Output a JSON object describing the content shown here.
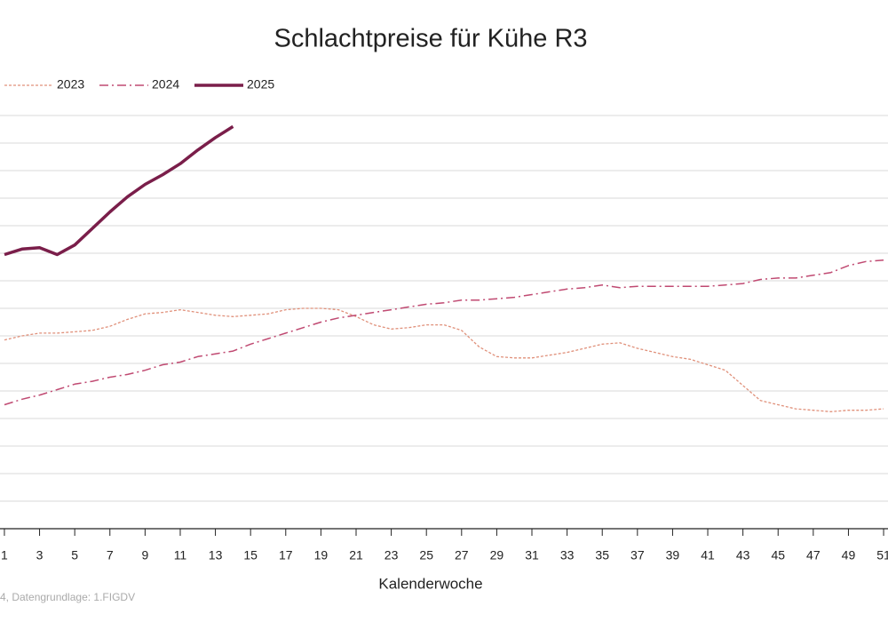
{
  "chart_data": {
    "type": "line",
    "title": "Schlachtpreise für Kühe R3",
    "x_label": "Kalenderwoche",
    "source": "4, Datengrundlage: 1.FIGDV",
    "x": [
      1,
      2,
      3,
      4,
      5,
      6,
      7,
      8,
      9,
      10,
      11,
      12,
      13,
      14,
      15,
      16,
      17,
      18,
      19,
      20,
      21,
      22,
      23,
      24,
      25,
      26,
      27,
      28,
      29,
      30,
      31,
      32,
      33,
      34,
      35,
      36,
      37,
      38,
      39,
      40,
      41,
      42,
      43,
      44,
      45,
      46,
      47,
      48,
      49,
      50,
      51
    ],
    "xlim": [
      0.75,
      51.25
    ],
    "xticks": [
      1,
      3,
      5,
      7,
      9,
      11,
      13,
      15,
      17,
      19,
      21,
      23,
      25,
      27,
      29,
      31,
      33,
      35,
      37,
      39,
      41,
      43,
      45,
      47,
      49,
      51
    ],
    "ylim": [
      3,
      6
    ],
    "grid_lines": [
      3.2,
      3.4,
      3.6,
      3.8,
      4.0,
      4.2,
      4.4,
      4.6,
      4.8,
      5.0,
      5.2,
      5.4,
      5.6,
      5.8,
      6.0
    ],
    "grid": true,
    "legend": "top-left",
    "series": [
      {
        "name": "2023",
        "color": "#e0907a",
        "line_style": "dotted",
        "values": [
          4.37,
          4.4,
          4.42,
          4.42,
          4.43,
          4.44,
          4.47,
          4.52,
          4.56,
          4.57,
          4.59,
          4.57,
          4.55,
          4.54,
          4.55,
          4.56,
          4.59,
          4.6,
          4.6,
          4.59,
          4.54,
          4.48,
          4.45,
          4.46,
          4.48,
          4.48,
          4.44,
          4.32,
          4.25,
          4.24,
          4.24,
          4.26,
          4.28,
          4.31,
          4.34,
          4.35,
          4.31,
          4.28,
          4.25,
          4.23,
          4.19,
          4.15,
          4.04,
          3.93,
          3.9,
          3.87,
          3.86,
          3.85,
          3.86,
          3.86,
          3.87
        ]
      },
      {
        "name": "2024",
        "color": "#c04a72",
        "line_style": "dashdot",
        "values": [
          3.9,
          3.94,
          3.97,
          4.01,
          4.05,
          4.07,
          4.1,
          4.12,
          4.15,
          4.19,
          4.21,
          4.25,
          4.27,
          4.29,
          4.34,
          4.38,
          4.42,
          4.46,
          4.5,
          4.53,
          4.55,
          4.57,
          4.59,
          4.61,
          4.63,
          4.64,
          4.66,
          4.66,
          4.67,
          4.68,
          4.7,
          4.72,
          4.74,
          4.75,
          4.77,
          4.75,
          4.76,
          4.76,
          4.76,
          4.76,
          4.76,
          4.77,
          4.78,
          4.81,
          4.82,
          4.82,
          4.84,
          4.86,
          4.91,
          4.94,
          4.95
        ]
      },
      {
        "name": "2025",
        "color": "#7a1e4a",
        "line_style": "solid",
        "values": [
          4.99,
          5.03,
          5.04,
          4.99,
          5.06,
          5.18,
          5.3,
          5.41,
          5.5,
          5.57,
          5.65,
          5.75,
          5.84,
          5.92,
          null,
          null,
          null,
          null,
          null,
          null,
          null,
          null,
          null,
          null,
          null,
          null,
          null,
          null,
          null,
          null,
          null,
          null,
          null,
          null,
          null,
          null,
          null,
          null,
          null,
          null,
          null,
          null,
          null,
          null,
          null,
          null,
          null,
          null,
          null,
          null,
          null
        ]
      }
    ]
  }
}
